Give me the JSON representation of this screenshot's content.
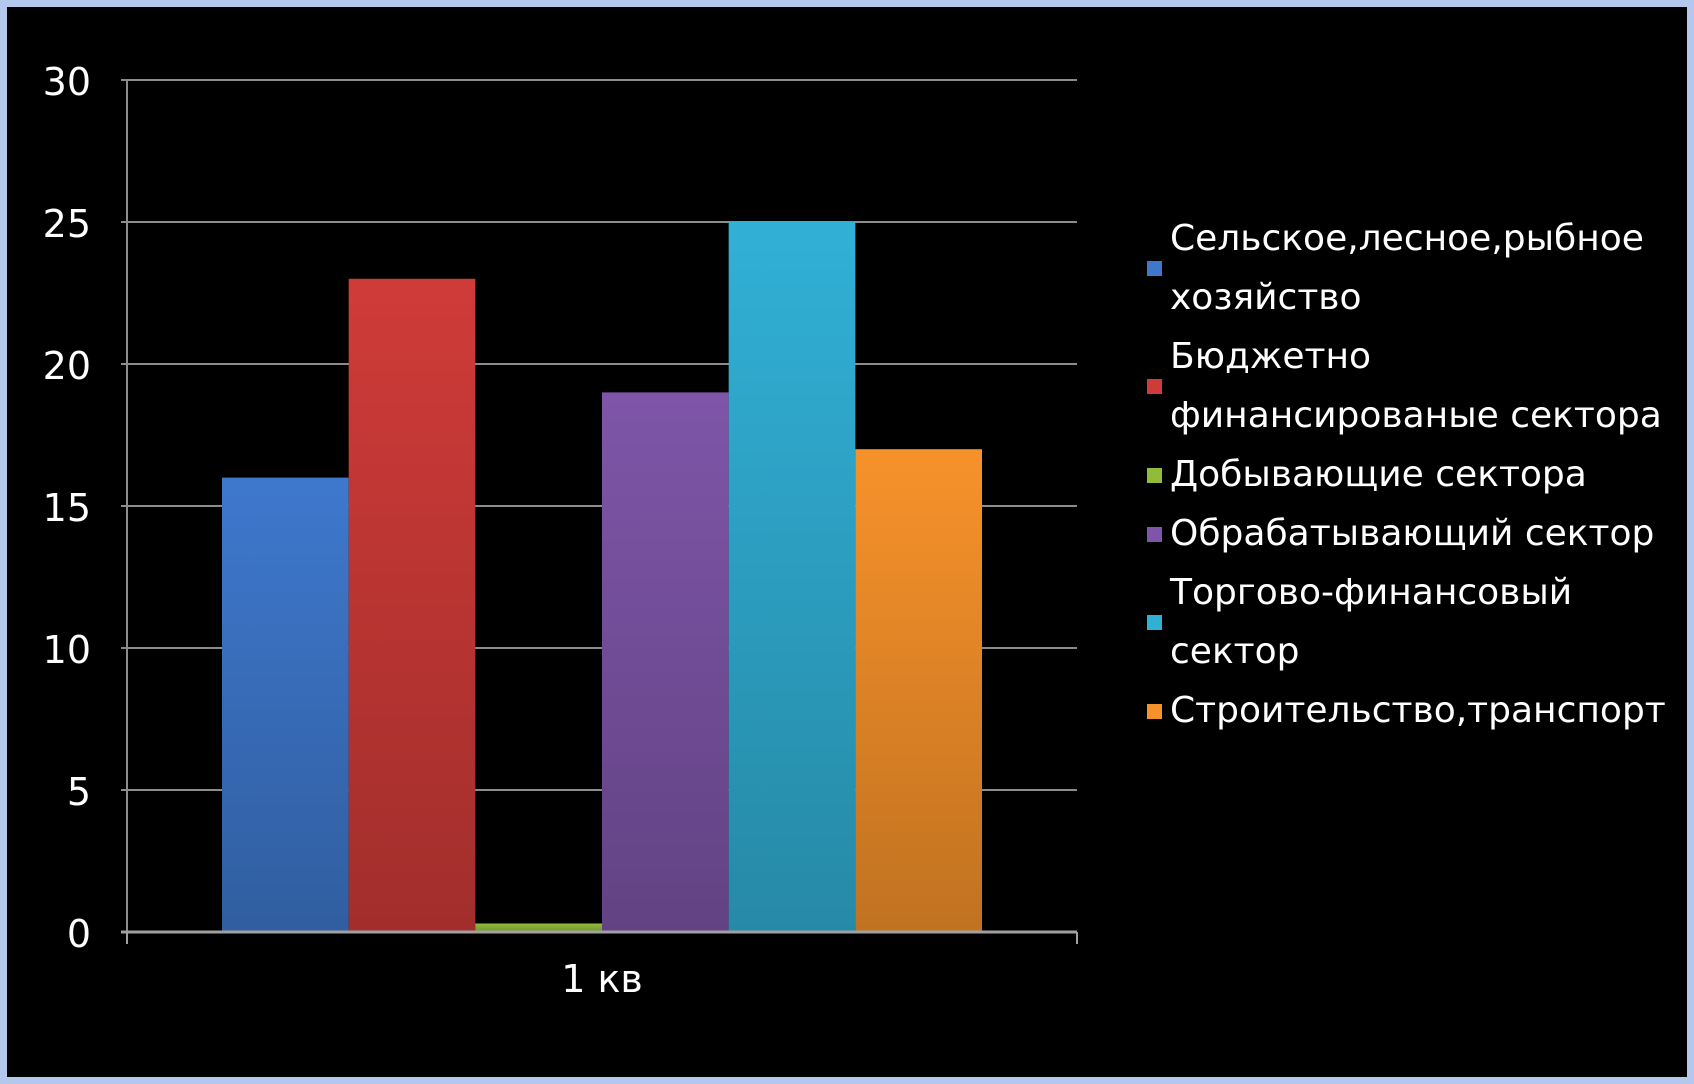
{
  "chart_data": {
    "type": "bar",
    "categories": [
      "1 кв"
    ],
    "series": [
      {
        "name": "Сельское,лесное,рыбное хозяйство",
        "values": [
          16
        ],
        "color": "#3e78cd"
      },
      {
        "name": "Бюджетно финансированые сектора",
        "values": [
          23
        ],
        "color": "#cf3b38"
      },
      {
        "name": "Добывающие сектора",
        "values": [
          0.3
        ],
        "color": "#8fbd3a"
      },
      {
        "name": "Обрабатывающий сектор",
        "values": [
          19
        ],
        "color": "#7e55a8"
      },
      {
        "name": "Торгово-финансовый сектор",
        "values": [
          25
        ],
        "color": "#31b0d6"
      },
      {
        "name": "Строительство,транспорт",
        "values": [
          17
        ],
        "color": "#f7922a"
      }
    ],
    "ylim": [
      0,
      30
    ],
    "yticks": [
      0,
      5,
      10,
      15,
      20,
      25,
      30
    ],
    "grid": true,
    "legend_position": "right",
    "background": "#000000",
    "text_color": "#ffffff"
  }
}
